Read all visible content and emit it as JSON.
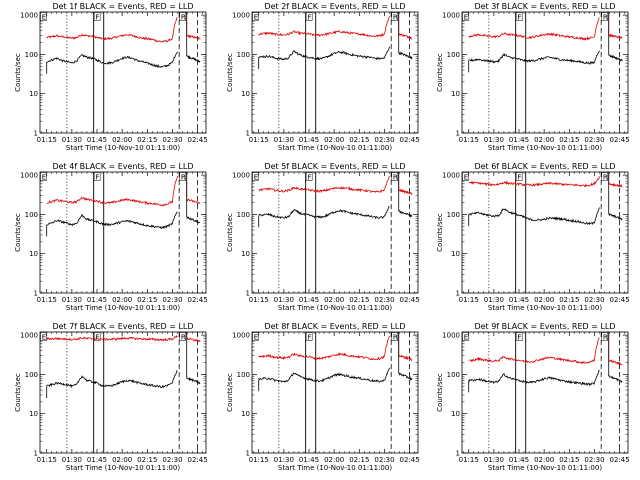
{
  "figure": {
    "background": "#ffffff",
    "events_color": "#000000",
    "lld_color": "#e00000"
  },
  "common": {
    "xlabel": "Start Time (10-Nov-10 01:11:00)",
    "ylabel": "Counts/sec",
    "xticks": [
      "01:15",
      "01:30",
      "01:45",
      "02:00",
      "02:15",
      "02:30",
      "02:45"
    ],
    "yticks": [
      "1",
      "10",
      "100",
      "1000"
    ],
    "markers": [
      "E",
      "F",
      "R"
    ]
  },
  "chart_data": [
    {
      "type": "line",
      "title": "Det 1f BLACK = Events, RED = LLD",
      "ylim": [
        1,
        1200
      ],
      "yscale": "log",
      "x_range": [
        "01:11",
        "02:50"
      ],
      "series": [
        {
          "name": "Events",
          "profile": [
            65,
            72,
            80,
            70,
            65,
            60,
            70,
            95,
            85,
            80,
            72,
            62,
            60,
            62,
            70,
            80,
            85,
            80,
            70,
            65,
            60,
            55,
            50,
            48,
            52,
            62,
            120
          ]
        },
        {
          "name": "LLD",
          "profile": [
            270,
            280,
            300,
            280,
            270,
            260,
            270,
            320,
            300,
            290,
            270,
            250,
            250,
            260,
            280,
            300,
            320,
            300,
            280,
            260,
            250,
            240,
            220,
            210,
            220,
            250,
            900
          ]
        }
      ],
      "tail_events": [
        90,
        65
      ],
      "tail_lld": [
        300,
        250
      ]
    },
    {
      "type": "line",
      "title": "Det 2f BLACK = Events, RED = LLD",
      "ylim": [
        1,
        1200
      ],
      "yscale": "log",
      "x_range": [
        "01:11",
        "02:50"
      ],
      "series": [
        {
          "name": "Events",
          "profile": [
            85,
            88,
            90,
            82,
            78,
            75,
            82,
            120,
            100,
            90,
            85,
            80,
            78,
            80,
            92,
            105,
            115,
            110,
            100,
            95,
            90,
            88,
            85,
            80,
            78,
            80,
            150
          ]
        },
        {
          "name": "LLD",
          "profile": [
            330,
            340,
            350,
            330,
            320,
            310,
            330,
            380,
            350,
            340,
            330,
            310,
            310,
            320,
            340,
            360,
            380,
            370,
            350,
            340,
            330,
            320,
            300,
            290,
            300,
            330,
            900
          ]
        }
      ],
      "tail_events": [
        110,
        80
      ],
      "tail_lld": [
        330,
        260
      ]
    },
    {
      "type": "line",
      "title": "Det 3f BLACK = Events, RED = LLD",
      "ylim": [
        1,
        1200
      ],
      "yscale": "log",
      "x_range": [
        "01:11",
        "02:50"
      ],
      "series": [
        {
          "name": "Events",
          "profile": [
            70,
            72,
            75,
            70,
            68,
            65,
            68,
            100,
            85,
            80,
            75,
            70,
            68,
            70,
            75,
            80,
            85,
            80,
            75,
            72,
            70,
            68,
            65,
            62,
            60,
            62,
            130
          ]
        },
        {
          "name": "LLD",
          "profile": [
            290,
            300,
            320,
            300,
            290,
            280,
            290,
            340,
            320,
            310,
            300,
            280,
            270,
            280,
            300,
            320,
            330,
            320,
            300,
            290,
            280,
            270,
            260,
            250,
            260,
            280,
            900
          ]
        }
      ],
      "tail_events": [
        95,
        70
      ],
      "tail_lld": [
        310,
        260
      ]
    },
    {
      "type": "line",
      "title": "Det 4f BLACK = Events, RED = LLD",
      "ylim": [
        1,
        1200
      ],
      "yscale": "log",
      "x_range": [
        "01:11",
        "02:50"
      ],
      "series": [
        {
          "name": "Events",
          "profile": [
            55,
            60,
            70,
            65,
            60,
            55,
            60,
            95,
            75,
            70,
            65,
            58,
            55,
            56,
            60,
            65,
            68,
            65,
            60,
            56,
            52,
            50,
            48,
            46,
            50,
            58,
            120
          ]
        },
        {
          "name": "LLD",
          "profile": [
            200,
            210,
            230,
            220,
            210,
            200,
            210,
            270,
            240,
            230,
            220,
            200,
            195,
            200,
            215,
            230,
            240,
            230,
            215,
            205,
            195,
            190,
            180,
            175,
            185,
            210,
            900
          ]
        }
      ],
      "tail_events": [
        85,
        60
      ],
      "tail_lld": [
        240,
        190
      ]
    },
    {
      "type": "line",
      "title": "Det 5f BLACK = Events, RED = LLD",
      "ylim": [
        1,
        1200
      ],
      "yscale": "log",
      "x_range": [
        "01:11",
        "02:50"
      ],
      "series": [
        {
          "name": "Events",
          "profile": [
            95,
            98,
            100,
            90,
            85,
            82,
            88,
            130,
            110,
            100,
            95,
            88,
            85,
            88,
            100,
            115,
            125,
            120,
            110,
            105,
            100,
            95,
            90,
            85,
            82,
            85,
            160
          ]
        },
        {
          "name": "LLD",
          "profile": [
            420,
            430,
            450,
            420,
            400,
            390,
            410,
            480,
            450,
            430,
            420,
            400,
            390,
            400,
            430,
            460,
            480,
            470,
            450,
            430,
            420,
            410,
            390,
            370,
            380,
            420,
            900
          ]
        }
      ],
      "tail_events": [
        120,
        90
      ],
      "tail_lld": [
        420,
        330
      ]
    },
    {
      "type": "line",
      "title": "Det 6f BLACK = Events, RED = LLD",
      "ylim": [
        1,
        1200
      ],
      "yscale": "log",
      "x_range": [
        "01:11",
        "02:50"
      ],
      "series": [
        {
          "name": "Events",
          "profile": [
            100,
            105,
            110,
            100,
            95,
            90,
            95,
            140,
            115,
            105,
            95,
            85,
            75,
            72,
            72,
            75,
            80,
            80,
            78,
            75,
            70,
            68,
            65,
            60,
            58,
            60,
            150
          ]
        },
        {
          "name": "LLD",
          "profile": [
            650,
            640,
            630,
            600,
            580,
            570,
            590,
            650,
            620,
            600,
            590,
            570,
            560,
            560,
            580,
            600,
            620,
            610,
            590,
            580,
            570,
            560,
            550,
            540,
            560,
            600,
            900
          ]
        }
      ],
      "tail_events": [
        100,
        75
      ],
      "tail_lld": [
        600,
        520
      ]
    },
    {
      "type": "line",
      "title": "Det 7f BLACK = Events, RED = LLD",
      "ylim": [
        1,
        1200
      ],
      "yscale": "log",
      "x_range": [
        "01:11",
        "02:50"
      ],
      "series": [
        {
          "name": "Events",
          "profile": [
            50,
            55,
            60,
            58,
            55,
            50,
            55,
            90,
            70,
            65,
            60,
            52,
            50,
            52,
            58,
            65,
            70,
            68,
            62,
            58,
            55,
            52,
            50,
            48,
            52,
            60,
            130
          ]
        },
        {
          "name": "LLD",
          "profile": [
            800,
            810,
            820,
            800,
            790,
            780,
            790,
            850,
            820,
            810,
            800,
            790,
            780,
            790,
            800,
            820,
            840,
            830,
            810,
            800,
            790,
            780,
            770,
            760,
            770,
            800,
            950
          ]
        }
      ],
      "tail_events": [
        80,
        60
      ],
      "tail_lld": [
        820,
        700
      ]
    },
    {
      "type": "line",
      "title": "Det 8f BLACK = Events, RED = LLD",
      "ylim": [
        1,
        1200
      ],
      "yscale": "log",
      "x_range": [
        "01:11",
        "02:50"
      ],
      "series": [
        {
          "name": "Events",
          "profile": [
            75,
            78,
            80,
            72,
            68,
            65,
            72,
            110,
            90,
            82,
            76,
            70,
            68,
            72,
            82,
            95,
            100,
            95,
            88,
            84,
            80,
            76,
            72,
            68,
            66,
            70,
            140
          ]
        },
        {
          "name": "LLD",
          "profile": [
            280,
            290,
            300,
            280,
            270,
            260,
            280,
            330,
            300,
            290,
            280,
            260,
            255,
            265,
            285,
            310,
            330,
            320,
            300,
            290,
            280,
            270,
            255,
            245,
            255,
            285,
            900
          ]
        }
      ],
      "tail_events": [
        105,
        75
      ],
      "tail_lld": [
        300,
        240
      ]
    },
    {
      "type": "line",
      "title": "Det 9f BLACK = Events, RED = LLD",
      "ylim": [
        1,
        1200
      ],
      "yscale": "log",
      "x_range": [
        "01:11",
        "02:50"
      ],
      "series": [
        {
          "name": "Events",
          "profile": [
            70,
            72,
            75,
            70,
            66,
            62,
            68,
            100,
            82,
            75,
            70,
            65,
            62,
            64,
            70,
            78,
            82,
            78,
            72,
            68,
            65,
            62,
            60,
            58,
            56,
            60,
            130
          ]
        },
        {
          "name": "LLD",
          "profile": [
            220,
            230,
            250,
            235,
            225,
            215,
            230,
            280,
            250,
            240,
            230,
            215,
            210,
            218,
            235,
            255,
            270,
            260,
            245,
            235,
            225,
            218,
            205,
            198,
            205,
            230,
            900
          ]
        }
      ],
      "tail_events": [
        90,
        65
      ],
      "tail_lld": [
        230,
        180
      ]
    }
  ]
}
